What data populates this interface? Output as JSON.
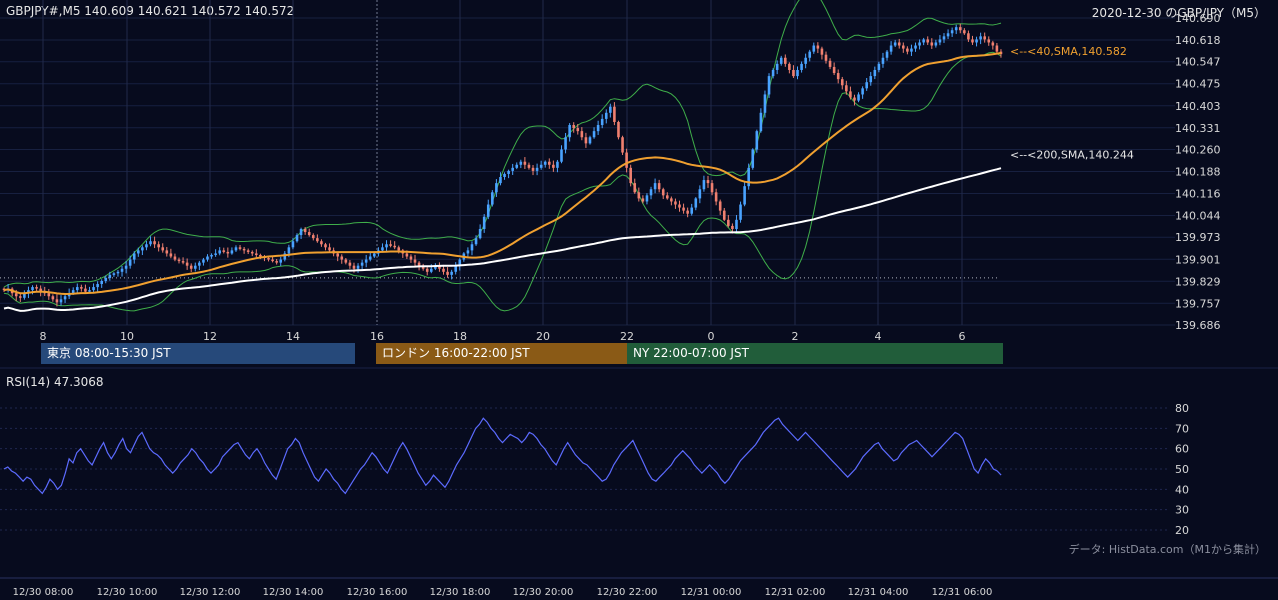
{
  "header": {
    "symbol_ohlc": "GBPJPY#,M5 140.609 140.621 140.572 140.572",
    "date_title": "2020-12-30 のGBP/JPY（M5）"
  },
  "sessions": [
    {
      "label": "東京 08:00-15:30 JST",
      "color": "#26497a"
    },
    {
      "label": "ロンドン 16:00-22:00 JST",
      "color": "#8a5a16"
    },
    {
      "label": "NY 22:00-07:00 JST",
      "color": "#215d3a"
    }
  ],
  "rsi": {
    "title": "RSI(14) 47.3068",
    "ticks": [
      "80",
      "70",
      "60",
      "50",
      "40",
      "30",
      "20"
    ],
    "values": [
      50,
      51,
      49,
      48,
      46,
      44,
      46,
      45,
      42,
      40,
      38,
      41,
      45,
      43,
      40,
      42,
      48,
      55,
      53,
      58,
      60,
      57,
      54,
      52,
      56,
      60,
      63,
      58,
      55,
      58,
      62,
      65,
      60,
      58,
      62,
      66,
      68,
      64,
      60,
      58,
      57,
      55,
      52,
      50,
      48,
      50,
      53,
      55,
      57,
      60,
      58,
      55,
      53,
      50,
      48,
      50,
      52,
      56,
      58,
      60,
      62,
      63,
      60,
      57,
      55,
      58,
      60,
      57,
      53,
      50,
      47,
      45,
      50,
      55,
      60,
      62,
      65,
      63,
      58,
      54,
      50,
      46,
      44,
      47,
      50,
      48,
      45,
      43,
      40,
      38,
      41,
      44,
      47,
      50,
      52,
      55,
      58,
      56,
      53,
      50,
      48,
      52,
      56,
      60,
      63,
      60,
      56,
      52,
      48,
      45,
      42,
      44,
      47,
      45,
      43,
      41,
      44,
      48,
      52,
      55,
      58,
      62,
      66,
      70,
      72,
      75,
      73,
      70,
      68,
      65,
      63,
      65,
      67,
      66,
      65,
      63,
      65,
      68,
      67,
      65,
      62,
      60,
      57,
      54,
      52,
      56,
      60,
      63,
      60,
      57,
      55,
      53,
      52,
      50,
      48,
      46,
      44,
      45,
      48,
      52,
      55,
      58,
      60,
      62,
      64,
      60,
      56,
      52,
      48,
      45,
      44,
      46,
      48,
      50,
      52,
      55,
      57,
      59,
      57,
      55,
      52,
      50,
      48,
      50,
      52,
      50,
      48,
      45,
      43,
      45,
      48,
      51,
      54,
      56,
      58,
      60,
      62,
      65,
      68,
      70,
      72,
      74,
      75,
      72,
      70,
      68,
      66,
      64,
      66,
      68,
      66,
      64,
      62,
      60,
      58,
      56,
      54,
      52,
      50,
      48,
      46,
      48,
      50,
      53,
      56,
      58,
      60,
      62,
      63,
      60,
      58,
      56,
      54,
      55,
      58,
      60,
      62,
      63,
      64,
      62,
      60,
      58,
      56,
      58,
      60,
      62,
      64,
      66,
      68,
      67,
      65,
      60,
      55,
      50,
      48,
      52,
      55,
      53,
      50,
      49,
      47
    ]
  },
  "footer": {
    "source": "データ: HistData.com（M1から集計）",
    "time_labels": [
      "12/30 08:00",
      "12/30 10:00",
      "12/30 12:00",
      "12/30 14:00",
      "12/30 16:00",
      "12/30 18:00",
      "12/30 20:00",
      "12/30 22:00",
      "12/31 00:00",
      "12/31 02:00",
      "12/31 04:00",
      "12/31 06:00"
    ]
  },
  "chart_data": {
    "type": "candlestick",
    "title": "GBPJPY#,M5",
    "x_tick_labels": [
      "8",
      "10",
      "12",
      "14",
      "16",
      "18",
      "20",
      "22",
      "0",
      "2",
      "4",
      "6"
    ],
    "y_tick_labels": [
      "140.690",
      "140.618",
      "140.547",
      "140.475",
      "140.403",
      "140.331",
      "140.260",
      "140.188",
      "140.116",
      "140.044",
      "139.973",
      "139.901",
      "139.829",
      "139.757",
      "139.686"
    ],
    "ylim": [
      139.686,
      140.69
    ],
    "reference_line": 139.84,
    "bars_count": 240,
    "close": [
      139.8,
      139.805,
      139.79,
      139.78,
      139.775,
      139.79,
      139.8,
      139.81,
      139.805,
      139.795,
      139.79,
      139.78,
      139.77,
      139.76,
      139.77,
      139.78,
      139.79,
      139.8,
      139.81,
      139.805,
      139.795,
      139.8,
      139.81,
      139.82,
      139.83,
      139.84,
      139.85,
      139.855,
      139.86,
      139.87,
      139.88,
      139.9,
      139.92,
      139.93,
      139.94,
      139.95,
      139.96,
      139.95,
      139.94,
      139.93,
      139.92,
      139.91,
      139.9,
      139.895,
      139.89,
      139.88,
      139.87,
      139.88,
      139.89,
      139.9,
      139.91,
      139.915,
      139.92,
      139.93,
      139.925,
      139.92,
      139.93,
      139.94,
      139.935,
      139.93,
      139.925,
      139.92,
      139.915,
      139.91,
      139.905,
      139.9,
      139.895,
      139.89,
      139.9,
      139.92,
      139.94,
      139.96,
      139.98,
      140.0,
      139.99,
      139.98,
      139.97,
      139.96,
      139.95,
      139.94,
      139.93,
      139.92,
      139.91,
      139.9,
      139.89,
      139.88,
      139.87,
      139.88,
      139.89,
      139.9,
      139.91,
      139.92,
      139.93,
      139.94,
      139.95,
      139.945,
      139.94,
      139.93,
      139.92,
      139.91,
      139.9,
      139.89,
      139.88,
      139.87,
      139.86,
      139.87,
      139.88,
      139.87,
      139.86,
      139.85,
      139.86,
      139.88,
      139.9,
      139.92,
      139.93,
      139.95,
      139.97,
      140.0,
      140.04,
      140.08,
      140.12,
      140.15,
      140.17,
      140.18,
      140.19,
      140.2,
      140.21,
      140.22,
      140.21,
      140.2,
      140.19,
      140.2,
      140.21,
      140.22,
      140.21,
      140.2,
      140.22,
      140.26,
      140.3,
      140.34,
      140.33,
      140.32,
      140.3,
      140.28,
      140.3,
      140.32,
      140.34,
      140.36,
      140.38,
      140.4,
      140.35,
      140.3,
      140.25,
      140.2,
      140.15,
      140.12,
      140.1,
      140.09,
      140.11,
      140.13,
      140.15,
      140.13,
      140.11,
      140.1,
      140.09,
      140.08,
      140.07,
      140.06,
      140.05,
      140.07,
      140.1,
      140.13,
      140.16,
      140.15,
      140.12,
      140.09,
      140.06,
      140.03,
      140.01,
      140.0,
      140.03,
      140.08,
      140.14,
      140.2,
      140.26,
      140.32,
      140.38,
      140.44,
      140.5,
      140.52,
      140.54,
      140.56,
      140.54,
      140.52,
      140.5,
      140.52,
      140.54,
      140.56,
      140.58,
      140.6,
      140.59,
      140.57,
      140.55,
      140.53,
      140.51,
      140.49,
      140.47,
      140.45,
      140.43,
      140.42,
      140.44,
      140.46,
      140.48,
      140.5,
      140.52,
      140.54,
      140.56,
      140.58,
      140.6,
      140.61,
      140.6,
      140.59,
      140.58,
      140.59,
      140.6,
      140.61,
      140.62,
      140.61,
      140.6,
      140.61,
      140.62,
      140.63,
      140.64,
      140.65,
      140.66,
      140.65,
      140.64,
      140.62,
      140.61,
      140.62,
      140.63,
      140.62,
      140.61,
      140.6,
      140.58,
      140.572
    ],
    "series": [
      {
        "name": "40,SMA",
        "label": "<--<40,SMA,140.582",
        "last": 140.582,
        "color": "#f0a030"
      },
      {
        "name": "200,SMA",
        "label": "<--<200,SMA,140.244",
        "last": 140.244,
        "color": "#ffffff"
      },
      {
        "name": "bollinger",
        "color": "#3fae4a"
      }
    ],
    "up_color": "#4aa3ff",
    "down_color": "#f08070"
  }
}
